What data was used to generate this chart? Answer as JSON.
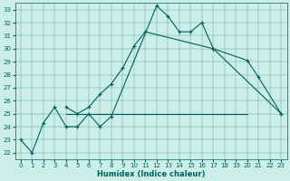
{
  "title": "",
  "xlabel": "Humidex (Indice chaleur)",
  "bg_color": "#cceee8",
  "line_color": "#006060",
  "xlim": [
    -0.5,
    23.5
  ],
  "ylim": [
    21.5,
    33.5
  ],
  "xticks": [
    0,
    1,
    2,
    3,
    4,
    5,
    6,
    7,
    8,
    9,
    10,
    11,
    12,
    13,
    14,
    15,
    16,
    17,
    18,
    19,
    20,
    21,
    22,
    23
  ],
  "yticks": [
    22,
    23,
    24,
    25,
    26,
    27,
    28,
    29,
    30,
    31,
    32,
    33
  ],
  "series": [
    {
      "x": [
        0,
        1,
        2,
        3,
        4,
        5,
        6,
        7,
        8,
        12,
        13,
        14,
        15,
        16,
        17,
        20,
        21,
        23
      ],
      "y": [
        23,
        22,
        24.3,
        25.5,
        24,
        24,
        25,
        24,
        24.8,
        33.3,
        32.5,
        31.3,
        31.3,
        32,
        30,
        29.1,
        27.8,
        25
      ]
    },
    {
      "x": [
        4,
        5,
        6,
        7,
        8,
        9,
        10,
        11,
        17,
        23
      ],
      "y": [
        25.5,
        25,
        25.5,
        26.5,
        27.3,
        28.5,
        30.2,
        31.3,
        30,
        25
      ]
    },
    {
      "x": [
        4,
        20
      ],
      "y": [
        25,
        25
      ]
    }
  ]
}
